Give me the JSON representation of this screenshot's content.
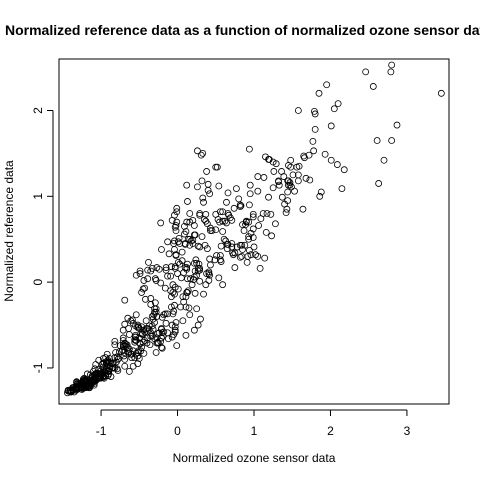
{
  "chart_data": {
    "type": "scatter",
    "title": "Normalized reference data as a function of normalized ozone sensor data",
    "xlabel": "Normalized ozone sensor data",
    "ylabel": "Normalized reference data",
    "xlim": [
      -1.55,
      3.55
    ],
    "ylim": [
      -1.42,
      2.6
    ],
    "x_ticks": [
      -1,
      0,
      1,
      2,
      3
    ],
    "y_ticks": [
      -1,
      0,
      1,
      2
    ],
    "x_tick_labels": [
      "-1",
      "0",
      "1",
      "2",
      "3"
    ],
    "y_tick_labels": [
      "-1",
      "0",
      "1",
      "2"
    ],
    "grid": false,
    "legend": "none",
    "marker": "open-circle",
    "marker_color": "#000000",
    "point_count": 600,
    "x": [
      -1.09,
      0.12,
      -0.54,
      -0.69,
      1.05,
      -0.82,
      1.56,
      -1.31,
      1.45,
      -0.28,
      -1.32,
      -1.29,
      -0.67,
      0.26,
      -0.49,
      0.49,
      -0.63,
      0.08,
      -1.03,
      2.63,
      0.22,
      0.13,
      -1.05,
      -1.18,
      -1.44,
      1.17,
      0.96,
      1.37,
      -0.22,
      0.96,
      0.11,
      1.19,
      1.73,
      0.36,
      0.02,
      0.37,
      -1.1,
      -0.24,
      -0.01,
      0.52,
      -0.64,
      -1.16,
      -1.41,
      -1.15,
      -0.85,
      0.95,
      -0.71,
      -1.17,
      -0.99,
      1.29,
      0.08,
      -0.58,
      -1.08,
      1.08,
      0.16,
      -0.07,
      0.42,
      0.04,
      -0.88,
      -0.35,
      1.68,
      -1.01,
      -0.39,
      -0.21,
      -1.32,
      -1.17,
      -1.43,
      -0.9,
      -0.94,
      0.14,
      0.99,
      -1.37,
      -0.56,
      -0.21,
      0.61,
      -1.27,
      0.95,
      -1.22,
      -1.32,
      1.48,
      -0.55,
      -0.13,
      -0.09,
      1.78,
      -0.93,
      -0.65,
      0.16,
      1.12,
      -1.01,
      -0.44,
      -0.49,
      0.11,
      1.44,
      0.25,
      -0.97,
      -0.87,
      -0.45,
      -1.07,
      -0.77,
      0.29,
      -0.04,
      1.77,
      0.0,
      -1.2,
      -0.56,
      0.03,
      -1.31,
      -0.52,
      1.4,
      -0.46,
      1.44,
      -0.02,
      -1.23,
      -1.25,
      -0.33,
      -0.64,
      -1.23,
      -0.01,
      -1.24,
      -0.9,
      1.47,
      -0.03,
      -0.41,
      -0.19,
      -0.9,
      -0.21,
      0.37,
      -1.14,
      0.42,
      -0.76,
      -1.23,
      0.99,
      -0.63,
      -1.01,
      -1.09,
      0.06,
      -0.96,
      1.22,
      0.1,
      -0.39,
      -0.85,
      0.78,
      -0.73,
      0.11,
      -1.01,
      -0.7,
      0.75,
      -1.22,
      0.2,
      0.2,
      -0.32,
      0.32,
      -0.69,
      -0.25,
      -0.47,
      -1.26,
      0.74,
      0.22,
      -0.27,
      0.54,
      0.55,
      -0.27,
      0.72,
      -0.02,
      -0.8,
      -0.28,
      -0.27,
      -0.71,
      -0.94,
      -0.78,
      0.39,
      0.93,
      0.56,
      2.18,
      -0.11,
      -0.91,
      -1.23,
      0.64,
      0.1,
      1.79,
      -1.07,
      -0.15,
      -0.03,
      0.45,
      -0.04,
      -1.25,
      0.18,
      -0.97,
      -1.07,
      1.05,
      -1.18,
      -1.26,
      -0.61,
      -1.07,
      -1.32,
      1.58,
      1.16,
      0.15,
      -1.12,
      2.09,
      -0.97,
      -1.15,
      0.25,
      1.06,
      -0.59,
      0.29,
      -0.9,
      -0.27,
      -0.13,
      0.25,
      1.19,
      -0.66,
      0.12,
      -1.19,
      -0.08,
      2.87,
      -0.58,
      -0.46,
      1.66,
      -1.11,
      -0.9,
      -1.32,
      0.94,
      -1.03,
      -0.31,
      -0.04,
      0.54,
      -0.38,
      -0.93,
      -1.2,
      -0.79,
      -0.08,
      0.88,
      -0.69,
      1.02,
      -0.75,
      0.39,
      -1.14,
      0.82,
      -0.28,
      -0.47,
      -1.34,
      1.32,
      0.57,
      -0.94,
      -0.7,
      1.43,
      -1.37,
      0.84,
      -0.97,
      -0.5,
      1.58,
      0.65,
      -1.12,
      0.34,
      -1.23,
      0.17,
      -0.98,
      1.72,
      0.14,
      -0.35,
      -1.09,
      -0.58,
      -0.69,
      -1.43,
      0.94,
      0.07,
      -1.33,
      -1.39,
      -1.26,
      -0.89,
      -0.06,
      0.22,
      -1.21,
      -1.11,
      -0.03,
      -1.37,
      0.05,
      -0.52,
      2.15,
      -0.89,
      -0.32,
      -0.29,
      1.59,
      0.94,
      0.34,
      -0.42,
      -1.27,
      -0.3,
      -0.43,
      -1.0,
      -0.82,
      -0.21,
      0.66,
      -0.55,
      -0.41,
      -0.44,
      -0.39,
      -0.22,
      -0.2,
      0.8,
      -1.22,
      0.07,
      -1.22,
      -0.55,
      -0.91,
      0.57,
      -0.06,
      -0.44,
      0.77,
      -0.04,
      2.7,
      -1.29,
      0.33,
      1.53,
      -1.14,
      -0.2,
      0.23,
      0.1,
      0.84,
      0.28,
      -0.33,
      0.59,
      -1.15,
      1.32,
      0.01,
      -1.11,
      0.41,
      -0.98,
      -0.18,
      1.45,
      -0.12,
      -1.11,
      1.39,
      -0.39,
      1.45,
      -0.79,
      -0.5,
      -1.02,
      -0.98,
      0.22,
      -0.05,
      0.75,
      0.12,
      -0.98,
      1.28,
      1.88,
      -0.6,
      -1.11,
      -0.51,
      0.27,
      0.66,
      0.21,
      0.41,
      0.62,
      -0.82,
      -0.47,
      0.43,
      -0.01,
      -1.14,
      -0.96,
      0.59,
      -0.51,
      0.29,
      -0.93,
      0.91,
      -0.63,
      -1.17,
      1.23,
      1.09,
      0.5,
      0.23,
      -1.04,
      1.2,
      0.38,
      -1.02,
      0.63,
      0.27,
      2.61,
      0.3,
      -1.07,
      0.65,
      -0.71,
      -0.92,
      1.13,
      -1.14,
      -1.05,
      -0.4,
      -0.85,
      0.27,
      -0.2,
      -1.08,
      -0.29,
      -0.55,
      -0.21,
      0.66,
      0.01,
      -0.06,
      1.15,
      -0.15,
      -0.02,
      0.5,
      -1.17,
      -0.84,
      0.82,
      -0.98,
      -1.22,
      -0.52,
      -0.35,
      -0.37,
      -0.22,
      -1.39,
      -0.64,
      -0.07,
      -0.02,
      -0.26,
      0.16,
      -0.28,
      -0.48,
      -0.36,
      -0.49,
      0.56,
      -0.3,
      -1.25,
      -0.05,
      -1.15,
      1.64,
      -1.35,
      0.16,
      -0.84,
      0.83,
      1.44,
      -1.24,
      0.9,
      -0.92,
      0.89,
      0.9,
      -0.54,
      -0.35,
      2.01,
      0.53,
      -0.95,
      -1.22,
      1.42,
      -0.69,
      1.93,
      0.01,
      -1.27,
      1.05,
      1.0,
      -0.48,
      -1.22,
      1.65,
      -0.24,
      1.25,
      -1.24,
      0.43,
      -1.11,
      0.64,
      0.5,
      0.93,
      1.14,
      0.23,
      0.31,
      -0.89,
      -0.98,
      0.59,
      0.09,
      -0.54,
      0.19,
      0.99,
      -1.4,
      -0.15,
      -1.21,
      1.25,
      0.13,
      -0.45,
      -1.16,
      0.92,
      -0.9,
      -0.05,
      -0.16,
      0.29,
      0.71,
      -1.25,
      -1.4,
      1.36,
      -1.03,
      -1.1,
      -1.33,
      -0.55,
      -1.26,
      0.51,
      -0.01,
      -0.13,
      0.87,
      -1.37,
      -0.21,
      -0.54,
      0.13,
      0.69,
      -1.36,
      -1.18,
      1.48,
      -1.09,
      0.82,
      0.27,
      -0.71,
      -1.2,
      -1.13,
      -1.07,
      -0.02,
      -0.5,
      0.71,
      -0.37,
      -1.16,
      -1.08,
      -1.18,
      0.73,
      0.85,
      -0.43,
      1.49,
      -0.61,
      -0.92,
      0.41,
      0.99,
      -1.06,
      -1.01,
      -0.87,
      -1.12,
      -0.81,
      0.38,
      -1.06,
      -0.3,
      0.11,
      0.32,
      0.29,
      -0.04,
      0.59,
      -1.09,
      -0.68,
      0.12,
      0.4,
      -0.16,
      -0.33,
      -0.71,
      -0.03,
      -0.65,
      0.35,
      0.29,
      1.51,
      -1.33,
      -0.56,
      0.2,
      -0.91,
      -0.69,
      -1.21,
      0.16,
      0.37,
      -1.2,
      0.85,
      -0.03,
      0.26,
      1.47,
      0.33,
      -0.09,
      -1.18,
      2.01,
      -0.13,
      0.82,
      -0.52,
      0.71,
      0.67,
      -1.32,
      -0.03,
      0.24,
      -0.18,
      0.42,
      -0.08,
      -0.26,
      0.93,
      0.43,
      -0.49,
      0.06,
      -1.31,
      -1.43,
      -0.43,
      0.13,
      -0.95,
      -1.31,
      -0.3,
      0.22,
      0.12,
      0.4,
      0.09,
      -0.03,
      -1.25,
      -0.33,
      -1.24,
      0.03,
      1.33,
      -1.25,
      0.56,
      -0.72,
      1.8,
      -0.52,
      1.26,
      -1.39,
      -0.35,
      -0.78,
      -0.07,
      -0.82,
      -0.6,
      2.79,
      2.8,
      2.46,
      2.56,
      2.8,
      3.45,
      1.86,
      1.85,
      1.95,
      2.1,
      2.05,
      1.58,
      1.8
    ],
    "y": [
      -1.2,
      1.13,
      -0.83,
      -0.21,
      0.3,
      -1.0,
      1.34,
      -1.18,
      1.36,
      -0.82,
      -1.24,
      -1.23,
      -0.75,
      1.53,
      0.13,
      0.26,
      -1.04,
      -0.23,
      -0.91,
      1.15,
      0.06,
      0.94,
      -1.06,
      -1.07,
      -1.29,
      0.8,
      0.57,
      0.99,
      0.69,
      0.32,
      -0.62,
      1.43,
      1.19,
      0.43,
      0.51,
      0.79,
      -1.04,
      0.15,
      0.86,
      1.34,
      -0.54,
      -1.23,
      -1.27,
      -1.21,
      -1.0,
      1.13,
      -0.68,
      -1.18,
      -1.08,
      1.38,
      0.11,
      -0.48,
      -1.08,
      0.16,
      0.5,
      -0.5,
      0.08,
      -0.29,
      -0.98,
      -0.19,
      1.21,
      -1.09,
      0.14,
      -0.76,
      -1.16,
      -1.21,
      -1.26,
      -1.04,
      -0.88,
      -0.1,
      0.79,
      -1.26,
      -0.88,
      0.38,
      0.5,
      -1.19,
      1.03,
      -1.23,
      -1.24,
      1.42,
      -0.64,
      -0.37,
      -0.1,
      1.53,
      -0.95,
      -0.42,
      0.7,
      0.8,
      -1.11,
      0.02,
      0.1,
      -0.17,
      1.18,
      0.22,
      -1.1,
      -1.1,
      -0.08,
      -1.07,
      -0.89,
      0.8,
      0.38,
      1.64,
      0.1,
      -1.15,
      -0.67,
      0.45,
      -1.19,
      -0.82,
      0.91,
      -0.61,
      1.05,
      0.6,
      -1.19,
      -1.23,
      -0.4,
      -0.83,
      -1.13,
      0.82,
      -1.24,
      -1.04,
      1.16,
      -0.06,
      -0.45,
      -0.63,
      -1.04,
      -0.65,
      -0.03,
      -1.17,
      1.03,
      -0.81,
      -1.13,
      0.76,
      -0.61,
      -1.04,
      -1.18,
      0.35,
      -1.12,
      0.79,
      0.17,
      0.04,
      -0.95,
      0.41,
      -0.81,
      -0.29,
      -1.07,
      -0.82,
      0.34,
      -1.23,
      0.45,
      0.49,
      -0.55,
      1.18,
      -0.98,
      -0.71,
      -0.52,
      -1.22,
      0.86,
      -0.56,
      -0.65,
      0.05,
      0.7,
      -0.4,
      0.34,
      0.32,
      -0.93,
      -0.31,
      0.17,
      -0.65,
      -1.09,
      -1.03,
      0.68,
      0.5,
      0.26,
      1.31,
      0.33,
      -1.03,
      -1.18,
      0.93,
      0.45,
      1.99,
      -1.15,
      0.14,
      0.18,
      0.6,
      0.78,
      -1.25,
      0.48,
      -1.09,
      -0.96,
      1.06,
      -1.16,
      -1.22,
      -0.45,
      -1.13,
      -1.21,
      1.25,
      0.58,
      -0.3,
      -1.18,
      1.37,
      -0.89,
      -1.2,
      -0.31,
      0.66,
      -0.44,
      0.41,
      -0.93,
      -0.71,
      -0.59,
      0.08,
      0.99,
      -0.73,
      0.15,
      -1.15,
      -0.17,
      1.83,
      -0.98,
      -0.6,
      1.45,
      -1.15,
      -1.03,
      -1.17,
      1.55,
      -1.09,
      -0.38,
      0.48,
      1.12,
      0.23,
      -1.02,
      -1.22,
      -0.87,
      0.18,
      0.43,
      -0.74,
      0.32,
      -0.74,
      0.39,
      -1.21,
      0.29,
      0.02,
      -0.12,
      -1.25,
      1.18,
      0.42,
      -1.02,
      -0.86,
      0.85,
      -1.23,
      0.3,
      -1.11,
      -0.54,
      1.18,
      0.39,
      -1.18,
      0.93,
      -1.22,
      0.04,
      -0.99,
      1.48,
      0.5,
      0.13,
      -1.09,
      -0.8,
      -0.9,
      -1.26,
      0.37,
      -0.45,
      -1.22,
      -1.28,
      -1.2,
      -0.94,
      -0.12,
      0.66,
      -1.17,
      -1.16,
      -0.52,
      -1.25,
      0.05,
      -0.53,
      1.09,
      -0.89,
      -0.43,
      0.04,
      1.35,
      0.9,
      -0.14,
      -0.2,
      -1.19,
      -0.66,
      -0.07,
      -1.06,
      -0.69,
      -0.55,
      0.8,
      -0.68,
      -0.54,
      -0.56,
      -0.54,
      -0.01,
      -0.59,
      0.97,
      -1.15,
      -0.17,
      -1.16,
      -0.62,
      -1.09,
      0.24,
      -0.37,
      -0.83,
      1.09,
      -0.27,
      1.42,
      -1.19,
      1.5,
      1.06,
      -1.15,
      -0.77,
      -0.13,
      0.44,
      0.43,
      0.21,
      0.16,
      0.82,
      -1.14,
      1.17,
      0.23,
      -1.15,
      0.12,
      -1.05,
      -0.58,
      1.13,
      -0.66,
      -1.16,
      1.23,
      -0.65,
      1.18,
      -1.01,
      -0.65,
      -1.12,
      -1.05,
      0.22,
      -0.61,
      0.17,
      0.17,
      -0.96,
      0.68,
      1.05,
      -0.84,
      -1.11,
      -0.52,
      -0.5,
      1.04,
      0.03,
      0.1,
      0.71,
      -0.73,
      -0.76,
      0.63,
      -0.74,
      -1.08,
      -0.94,
      0.59,
      -0.8,
      0.01,
      -0.94,
      0.23,
      -0.78,
      -1.19,
      0.54,
      0.74,
      0.61,
      0.13,
      -1.07,
      1.43,
      0.1,
      -1.1,
      0.48,
      0.42,
      1.65,
      -0.43,
      -1.14,
      0.44,
      -0.75,
      -0.84,
      1.22,
      -1.15,
      -1.13,
      -0.71,
      -1.0,
      0.13,
      -0.41,
      -1.11,
      -0.24,
      -0.51,
      -0.65,
      0.44,
      0.47,
      -0.03,
      1.46,
      0.17,
      -0.47,
      1.34,
      -1.22,
      -0.94,
      0.88,
      -1.07,
      -1.12,
      -0.5,
      -0.59,
      -0.55,
      -0.69,
      -1.27,
      -0.81,
      -0.64,
      0.31,
      -0.6,
      0.43,
      -0.35,
      -0.6,
      -0.73,
      -0.72,
      0.82,
      -0.35,
      -1.17,
      0.45,
      -1.23,
      0.85,
      -1.28,
      -0.38,
      -1.0,
      0.89,
      0.95,
      -1.21,
      0.71,
      -0.92,
      0.67,
      0.7,
      -0.68,
      -0.63,
      1.42,
      0.73,
      -1.04,
      -1.14,
      0.81,
      -0.49,
      1.49,
      -0.08,
      -1.19,
      1.23,
      0.41,
      -0.8,
      -1.16,
      1.47,
      -0.59,
      1.1,
      -1.17,
      0.2,
      -1.16,
      0.69,
      0.79,
      0.53,
      0.28,
      0.55,
      1.48,
      -1.01,
      -0.95,
      -0.03,
      0.56,
      0.08,
      -0.03,
      0.52,
      -1.26,
      -0.48,
      -1.15,
      1.4,
      0.04,
      -0.7,
      -1.18,
      0.3,
      -1.07,
      -0.34,
      -0.37,
      0.14,
      0.45,
      -1.2,
      -1.28,
      1.29,
      -1.02,
      -1.14,
      -1.26,
      -0.64,
      -1.23,
      0.31,
      0.7,
      0.47,
      0.6,
      -1.23,
      -0.54,
      -0.38,
      0.21,
      0.75,
      -1.23,
      -1.18,
      1.34,
      -1.16,
      0.43,
      0.16,
      -0.56,
      -1.19,
      -1.17,
      -1.12,
      0.66,
      -0.89,
      0.72,
      -0.51,
      -1.19,
      -1.01,
      -1.22,
      0.32,
      0.38,
      -0.68,
      1.11,
      -0.84,
      -0.94,
      0.02,
      0.62,
      -1.07,
      -1.12,
      -0.95,
      -1.1,
      -0.82,
      1.29,
      -1.06,
      -0.31,
      0.59,
      0.53,
      0.16,
      -0.14,
      0.71,
      -1.14,
      -0.72,
      -0.12,
      1.14,
      -0.07,
      -0.51,
      -0.73,
      0.64,
      -0.76,
      0.73,
      0.78,
      1.25,
      -1.23,
      -0.7,
      0.72,
      -0.91,
      -0.71,
      -1.14,
      0.8,
      0.71,
      -1.23,
      0.67,
      0.16,
      1.11,
      1.13,
      0.98,
      0.07,
      -1.2,
      1.82,
      0.07,
      0.9,
      -0.86,
      0.41,
      0.78,
      -1.21,
      -0.56,
      0.26,
      -0.38,
      0.27,
      -0.29,
      -0.7,
      0.7,
      0.6,
      -0.71,
      0.25,
      -1.21,
      -1.27,
      -0.58,
      -0.12,
      -1.06,
      -1.25,
      -0.47,
      0.55,
      0.7,
      1.07,
      0.65,
      -0.58,
      -1.19,
      -0.63,
      -1.2,
      0.21,
      1.13,
      -1.22,
      0.31,
      -0.79,
      1.96,
      -0.95,
      1.29,
      -1.27,
      -0.26,
      -0.9,
      0.72,
      -0.88,
      -0.88,
      2.45,
      2.53,
      2.45,
      2.28,
      1.65,
      2.2,
      1.0,
      2.2,
      2.3,
      2.08,
      2.02,
      2.0,
      1.78
    ]
  }
}
